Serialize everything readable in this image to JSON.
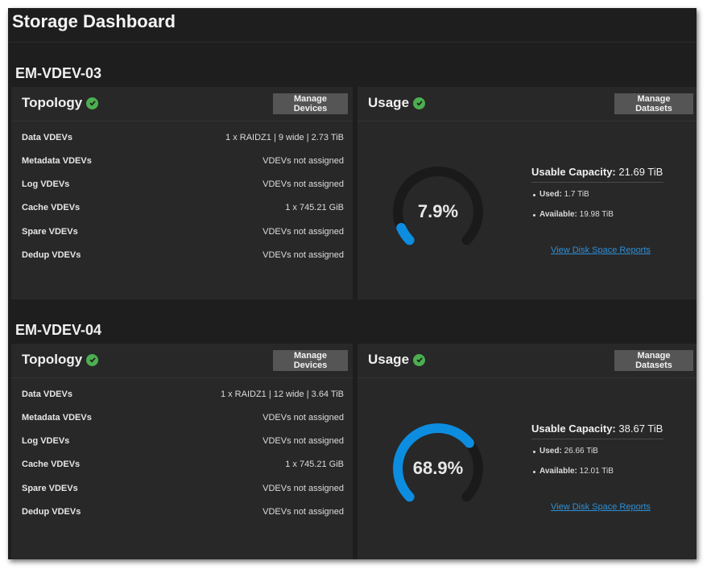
{
  "page": {
    "title": "Storage Dashboard"
  },
  "colors": {
    "gauge_fill": "#0d8de0",
    "gauge_track": "#1a1a1a",
    "status_ok": "#4caf50"
  },
  "pools": [
    {
      "name": "EM-VDEV-03",
      "topology": {
        "title": "Topology",
        "button": "Manage Devices",
        "rows": [
          {
            "label": "Data VDEVs",
            "value": "1 x RAIDZ1 | 9 wide | 2.73 TiB"
          },
          {
            "label": "Metadata VDEVs",
            "value": "VDEVs not assigned"
          },
          {
            "label": "Log VDEVs",
            "value": "VDEVs not assigned"
          },
          {
            "label": "Cache VDEVs",
            "value": "1 x 745.21 GiB"
          },
          {
            "label": "Spare VDEVs",
            "value": "VDEVs not assigned"
          },
          {
            "label": "Dedup VDEVs",
            "value": "VDEVs not assigned"
          }
        ]
      },
      "usage": {
        "title": "Usage",
        "button": "Manage Datasets",
        "percent": 7.9,
        "percent_label": "7.9%",
        "capacity_label": "Usable Capacity:",
        "capacity_value": "21.69 TiB",
        "used_label": "Used:",
        "used_value": "1.7 TiB",
        "available_label": "Available:",
        "available_value": "19.98 TiB",
        "link": "View Disk Space Reports"
      }
    },
    {
      "name": "EM-VDEV-04",
      "topology": {
        "title": "Topology",
        "button": "Manage Devices",
        "rows": [
          {
            "label": "Data VDEVs",
            "value": "1 x RAIDZ1 | 12 wide | 3.64 TiB"
          },
          {
            "label": "Metadata VDEVs",
            "value": "VDEVs not assigned"
          },
          {
            "label": "Log VDEVs",
            "value": "VDEVs not assigned"
          },
          {
            "label": "Cache VDEVs",
            "value": "1 x 745.21 GiB"
          },
          {
            "label": "Spare VDEVs",
            "value": "VDEVs not assigned"
          },
          {
            "label": "Dedup VDEVs",
            "value": "VDEVs not assigned"
          }
        ]
      },
      "usage": {
        "title": "Usage",
        "button": "Manage Datasets",
        "percent": 68.9,
        "percent_label": "68.9%",
        "capacity_label": "Usable Capacity:",
        "capacity_value": "38.67 TiB",
        "used_label": "Used:",
        "used_value": "26.66 TiB",
        "available_label": "Available:",
        "available_value": "12.01 TiB",
        "link": "View Disk Space Reports"
      }
    }
  ]
}
